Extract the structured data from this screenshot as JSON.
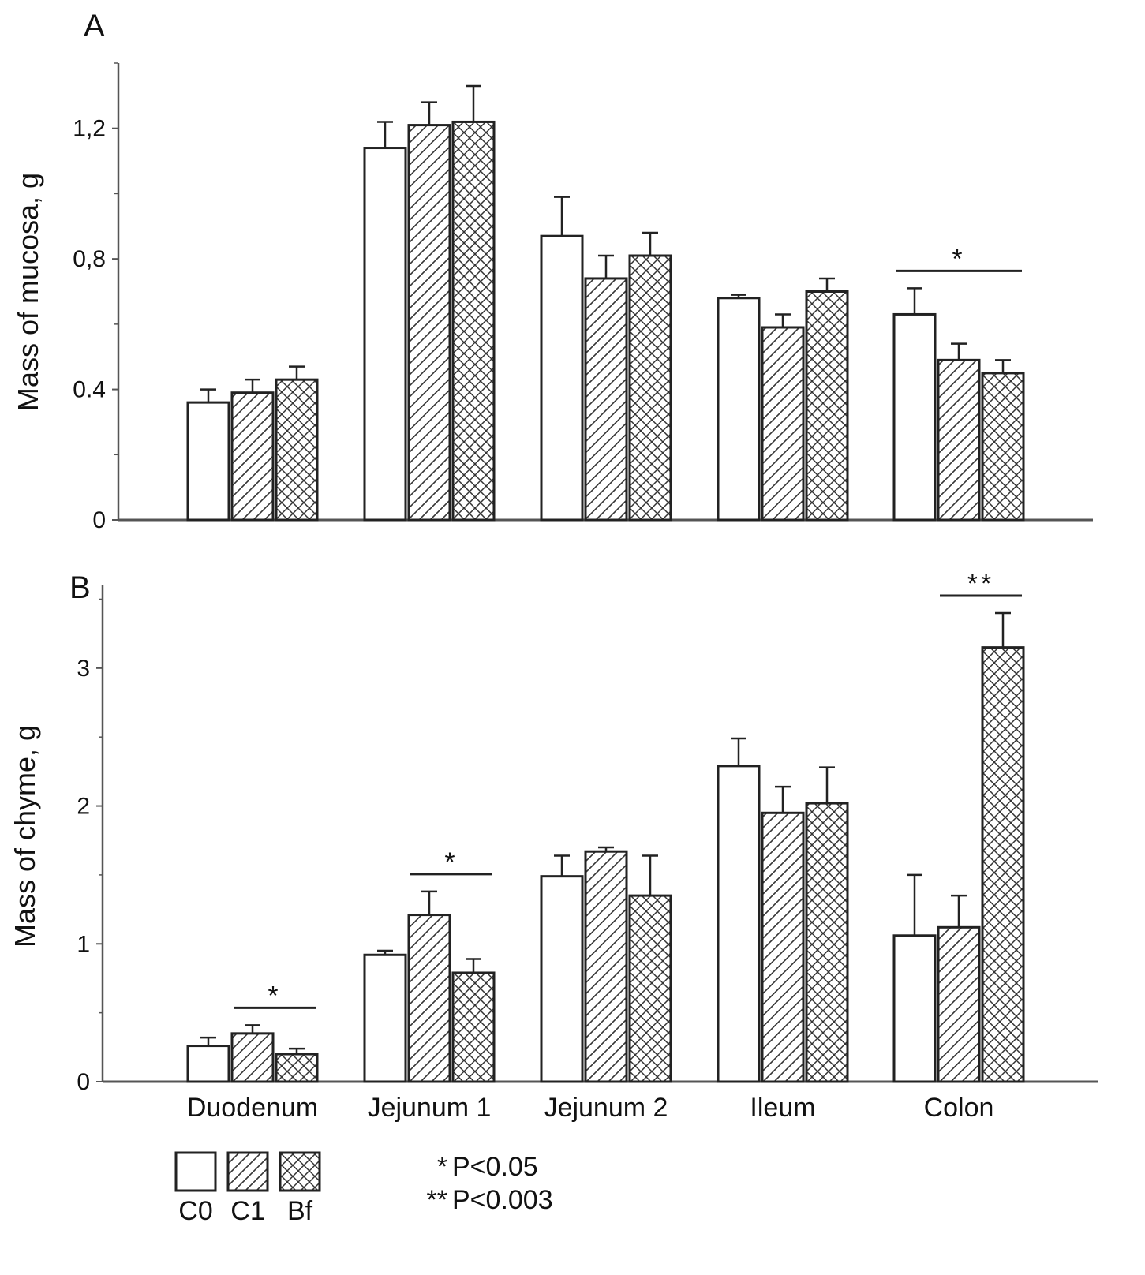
{
  "chart_data": [
    {
      "panel": "A",
      "type": "bar",
      "ylabel": "Mass of mucosa, g",
      "xlabel": "",
      "ylim": [
        0,
        1.4
      ],
      "yticks": [
        {
          "value": 0,
          "label": "0"
        },
        {
          "value": 0.4,
          "label": "0.4"
        },
        {
          "value": 0.8,
          "label": "0,8"
        },
        {
          "value": 1.2,
          "label": "1,2"
        }
      ],
      "categories": [
        "Duodenum",
        "Jejunum 1",
        "Jejunum 2",
        "Ileum",
        "Colon"
      ],
      "series": [
        {
          "name": "C0",
          "values": [
            0.36,
            1.14,
            0.87,
            0.68,
            0.63
          ],
          "errors": [
            0.04,
            0.08,
            0.12,
            0.01,
            0.08
          ]
        },
        {
          "name": "C1",
          "values": [
            0.39,
            1.21,
            0.74,
            0.59,
            0.49
          ],
          "errors": [
            0.04,
            0.07,
            0.07,
            0.04,
            0.05
          ]
        },
        {
          "name": "Bf",
          "values": [
            0.43,
            1.22,
            0.81,
            0.7,
            0.45
          ],
          "errors": [
            0.04,
            0.11,
            0.07,
            0.04,
            0.04
          ]
        }
      ],
      "significance": [
        {
          "category": "Colon",
          "from_series": "C0",
          "to_series": "Bf",
          "label": "*"
        }
      ]
    },
    {
      "panel": "B",
      "type": "bar",
      "ylabel": "Mass of chyme, g",
      "xlabel": "",
      "ylim": [
        0,
        3.6
      ],
      "yticks": [
        {
          "value": 0,
          "label": "0"
        },
        {
          "value": 1,
          "label": "1"
        },
        {
          "value": 2,
          "label": "2"
        },
        {
          "value": 3,
          "label": "3"
        }
      ],
      "categories": [
        "Duodenum",
        "Jejunum 1",
        "Jejunum 2",
        "Ileum",
        "Colon"
      ],
      "series": [
        {
          "name": "C0",
          "values": [
            0.26,
            0.92,
            1.49,
            2.29,
            1.06
          ],
          "errors": [
            0.06,
            0.03,
            0.15,
            0.2,
            0.44
          ]
        },
        {
          "name": "C1",
          "values": [
            0.35,
            1.21,
            1.67,
            1.95,
            1.12
          ],
          "errors": [
            0.06,
            0.17,
            0.03,
            0.19,
            0.23
          ]
        },
        {
          "name": "Bf",
          "values": [
            0.2,
            0.79,
            1.35,
            2.02,
            3.15
          ],
          "errors": [
            0.04,
            0.1,
            0.29,
            0.26,
            0.25
          ]
        }
      ],
      "significance": [
        {
          "category": "Duodenum",
          "from_series": "C1",
          "to_series": "Bf",
          "label": "*"
        },
        {
          "category": "Jejunum 1",
          "from_series": "C1",
          "to_series": "Bf",
          "label": "*"
        },
        {
          "category": "Colon",
          "from_series": "C1",
          "to_series": "Bf",
          "label": "**"
        }
      ]
    }
  ],
  "legend": {
    "entries": [
      {
        "name": "C0",
        "pattern": "empty"
      },
      {
        "name": "C1",
        "pattern": "diagonal-hatch"
      },
      {
        "name": "Bf",
        "pattern": "cross-hatch"
      }
    ],
    "notes": [
      {
        "symbol": "*",
        "text": "P<0.05"
      },
      {
        "symbol": "**",
        "text": "P<0.003"
      }
    ]
  },
  "colors": {
    "bar_outline": "#222222",
    "axis": "#555555",
    "hatch": "#333333",
    "fill": "#ffffff"
  }
}
